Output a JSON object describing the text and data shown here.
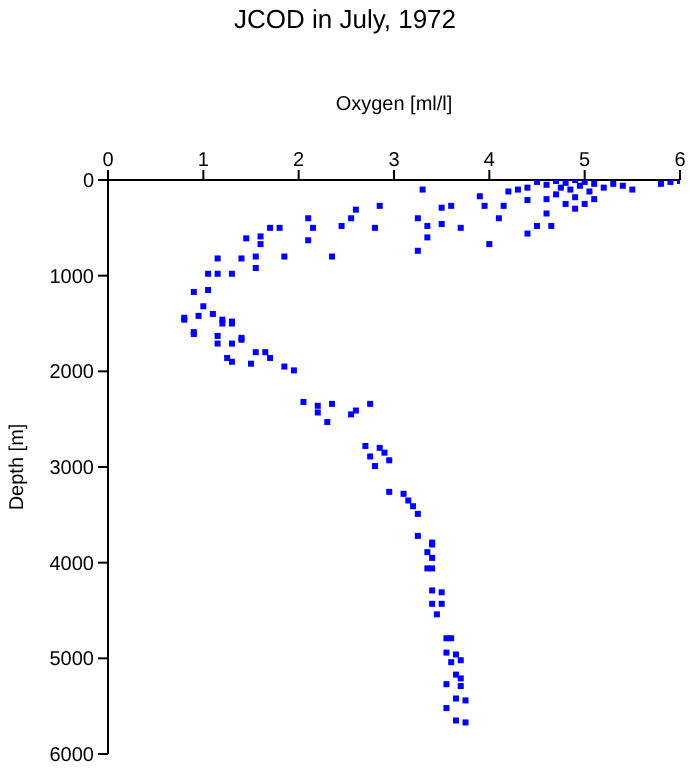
{
  "chart_data": {
    "type": "scatter",
    "title": "JCOD in July, 1972",
    "xlabel": "Oxygen [ml/l]",
    "ylabel": "Depth [m]",
    "xlim": [
      0,
      6
    ],
    "xticks": [
      0,
      1,
      2,
      3,
      4,
      5,
      6
    ],
    "ylim": [
      6000,
      0
    ],
    "yticks": [
      0,
      1000,
      2000,
      3000,
      4000,
      5000,
      6000
    ],
    "grid": false,
    "legend": false,
    "marker": "square",
    "series": [
      {
        "color": "#0000ff",
        "x": [
          4.5,
          4.6,
          4.7,
          4.75,
          4.8,
          4.85,
          4.9,
          4.95,
          5.0,
          5.05,
          5.1,
          4.7,
          4.9,
          5.0,
          5.3,
          5.4,
          5.5,
          5.8,
          5.9,
          6.0,
          4.6,
          4.4,
          4.3,
          4.2,
          5.2,
          4.8,
          5.1,
          4.9,
          3.3,
          3.9,
          3.95,
          4.15,
          4.1,
          4.4,
          4.6,
          4.4,
          4.65,
          4.5,
          4.0,
          3.7,
          3.5,
          3.6,
          3.5,
          3.35,
          3.35,
          3.25,
          3.25,
          2.85,
          2.6,
          2.8,
          2.55,
          2.45,
          2.1,
          2.15,
          2.1,
          2.35,
          1.8,
          1.85,
          1.7,
          1.6,
          1.6,
          1.55,
          1.55,
          1.45,
          1.4,
          1.15,
          1.15,
          1.05,
          1.3,
          1.05,
          0.9,
          1.0,
          1.1,
          0.95,
          0.8,
          1.2,
          1.3,
          0.9,
          1.15,
          1.4,
          0.8,
          0.9,
          1.2,
          1.3,
          1.15,
          1.3,
          1.4,
          1.25,
          1.3,
          1.5,
          1.55,
          1.65,
          1.7,
          1.85,
          1.95,
          2.05,
          2.2,
          2.2,
          2.3,
          2.35,
          2.55,
          2.6,
          2.75,
          2.7,
          2.75,
          2.85,
          2.9,
          2.95,
          2.8,
          2.95,
          3.1,
          3.15,
          3.2,
          3.25,
          3.25,
          3.4,
          3.35,
          3.4,
          3.4,
          3.35,
          3.4,
          3.4,
          3.5,
          3.5,
          3.4,
          3.45,
          3.55,
          3.6,
          3.55,
          3.65,
          3.6,
          3.7,
          3.65,
          3.7,
          3.55,
          3.7,
          3.65,
          3.75,
          3.55,
          3.65,
          3.75
        ],
        "values": [
          20,
          50,
          10,
          80,
          30,
          100,
          0,
          60,
          20,
          120,
          40,
          150,
          180,
          250,
          40,
          60,
          100,
          40,
          20,
          10,
          200,
          80,
          100,
          120,
          80,
          250,
          200,
          300,
          100,
          170,
          270,
          270,
          400,
          210,
          350,
          560,
          480,
          480,
          670,
          500,
          460,
          270,
          290,
          480,
          600,
          740,
          400,
          270,
          310,
          500,
          400,
          480,
          400,
          500,
          630,
          800,
          500,
          800,
          500,
          590,
          670,
          800,
          920,
          610,
          820,
          820,
          980,
          980,
          980,
          1150,
          1170,
          1320,
          1400,
          1420,
          1440,
          1460,
          1480,
          1610,
          1630,
          1650,
          1460,
          1590,
          1500,
          1500,
          1710,
          1710,
          1670,
          1860,
          1900,
          1920,
          1800,
          1800,
          1860,
          1950,
          1990,
          2320,
          2360,
          2430,
          2530,
          2340,
          2450,
          2410,
          2340,
          2780,
          2890,
          2800,
          2850,
          2930,
          2990,
          3260,
          3280,
          3350,
          3410,
          3490,
          3720,
          3790,
          3890,
          3810,
          3950,
          4060,
          4060,
          4290,
          4310,
          4430,
          4430,
          4540,
          4790,
          4790,
          4940,
          4960,
          5040,
          5020,
          5170,
          5210,
          5270,
          5290,
          5420,
          5440,
          5520,
          5650,
          5670
        ]
      }
    ]
  }
}
